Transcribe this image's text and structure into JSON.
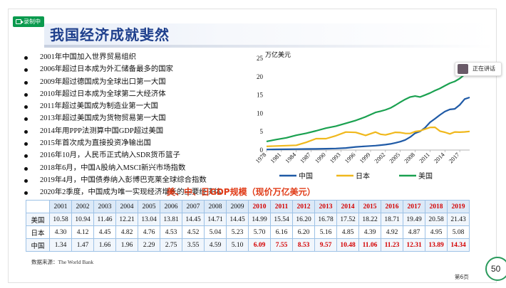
{
  "recording_badge": {
    "label": "录制中",
    "color": "#0a9a4e"
  },
  "slide": {
    "title": "我国经济成就斐然",
    "events": [
      "2001年中国加入世界贸易组织",
      "2006年超过日本成为外汇储备最多的国家",
      "2009年超过德国成为全球出口第一大国",
      "2010年超过日本成为全球第二大经济体",
      "2011年超过美国成为制造业第一大国",
      "2013年超过美国成为货物贸易第一大国",
      "2014年用PPP法测算中国GDP超过美国",
      "2015年首次成为直接投资净输出国",
      "2016年10月，人民币正式纳入SDR货币篮子",
      "2018年6月，中国A股纳入MSCI新兴市场指数",
      "2019年4月，中国债券纳入彭博巴克莱全球综合指数",
      "2020年2季度，中国成为唯一实现经济增长的主要经济体"
    ],
    "table_caption": "美、中、日GDP规模（现价万亿美元）",
    "table": {
      "years": [
        "2001",
        "2002",
        "2003",
        "2004",
        "2005",
        "2006",
        "2007",
        "2008",
        "2009",
        "2010",
        "2011",
        "2012",
        "2013",
        "2014",
        "2015",
        "2016",
        "2017",
        "2018",
        "2019"
      ],
      "highlight_from_year": "2010",
      "rows": [
        {
          "label": "美国",
          "values": [
            "10.58",
            "10.94",
            "11.46",
            "12.21",
            "13.04",
            "13.81",
            "14.45",
            "14.71",
            "14.45",
            "14.99",
            "15.54",
            "16.20",
            "16.78",
            "17.52",
            "18.22",
            "18.71",
            "19.49",
            "20.58",
            "21.43"
          ],
          "highlight": false
        },
        {
          "label": "日本",
          "values": [
            "4.30",
            "4.12",
            "4.45",
            "4.82",
            "4.76",
            "4.53",
            "4.52",
            "5.04",
            "5.23",
            "5.70",
            "6.16",
            "6.20",
            "5.16",
            "4.85",
            "4.39",
            "4.92",
            "4.87",
            "4.95",
            "5.08"
          ],
          "highlight": false
        },
        {
          "label": "中国",
          "values": [
            "1.34",
            "1.47",
            "1.66",
            "1.96",
            "2.29",
            "2.75",
            "3.55",
            "4.59",
            "5.10",
            "6.09",
            "7.55",
            "8.53",
            "9.57",
            "10.48",
            "11.06",
            "11.23",
            "12.31",
            "13.89",
            "14.34"
          ],
          "highlight": true
        }
      ]
    },
    "source": "数据来源：The World Bank",
    "page_number": "第6页"
  },
  "speaking_indicator": {
    "label": "正在讲话"
  },
  "timer": {
    "value": "50"
  },
  "colors": {
    "china": "#1f5aa6",
    "japan": "#f0b81c",
    "usa": "#1aa150",
    "highlight_red": "#d40000",
    "title_blue": "#1e3f8c"
  },
  "chart_data": {
    "type": "line",
    "ylabel": "万亿美元",
    "ylim": [
      0,
      25
    ],
    "yticks": [
      0,
      5,
      10,
      15,
      20,
      25
    ],
    "xlim": [
      1978,
      2019
    ],
    "xtick_labels": [
      "1978",
      "1981",
      "1984",
      "1987",
      "1990",
      "1993",
      "1996",
      "1999",
      "2002",
      "2005",
      "2008",
      "2011",
      "2014",
      "2017"
    ],
    "legend_position": "bottom",
    "series": [
      {
        "name": "中国",
        "color": "#1f5aa6",
        "x": [
          1978,
          1980,
          1982,
          1984,
          1986,
          1988,
          1990,
          1992,
          1994,
          1996,
          1998,
          2000,
          2001,
          2002,
          2003,
          2004,
          2005,
          2006,
          2007,
          2008,
          2009,
          2010,
          2011,
          2012,
          2013,
          2014,
          2015,
          2016,
          2017,
          2018,
          2019
        ],
        "y": [
          0.15,
          0.19,
          0.21,
          0.26,
          0.3,
          0.31,
          0.36,
          0.43,
          0.56,
          0.86,
          1.03,
          1.21,
          1.34,
          1.47,
          1.66,
          1.96,
          2.29,
          2.75,
          3.55,
          4.59,
          5.1,
          6.09,
          7.55,
          8.53,
          9.57,
          10.48,
          11.06,
          11.23,
          12.31,
          13.89,
          14.34
        ]
      },
      {
        "name": "日本",
        "color": "#f0b81c",
        "x": [
          1978,
          1980,
          1982,
          1984,
          1986,
          1988,
          1990,
          1992,
          1994,
          1996,
          1998,
          2000,
          2001,
          2002,
          2003,
          2004,
          2005,
          2006,
          2007,
          2008,
          2009,
          2010,
          2011,
          2012,
          2013,
          2014,
          2015,
          2016,
          2017,
          2018,
          2019
        ],
        "y": [
          1.0,
          1.1,
          1.2,
          1.3,
          2.1,
          3.1,
          3.1,
          3.9,
          4.9,
          4.8,
          4.0,
          4.9,
          4.3,
          4.12,
          4.45,
          4.82,
          4.76,
          4.53,
          4.52,
          5.04,
          5.23,
          5.7,
          6.16,
          6.2,
          5.16,
          4.85,
          4.39,
          4.92,
          4.87,
          4.95,
          5.08
        ]
      },
      {
        "name": "美国",
        "color": "#1aa150",
        "x": [
          1978,
          1980,
          1982,
          1984,
          1986,
          1988,
          1990,
          1992,
          1994,
          1996,
          1998,
          2000,
          2001,
          2002,
          2003,
          2004,
          2005,
          2006,
          2007,
          2008,
          2009,
          2010,
          2011,
          2012,
          2013,
          2014,
          2015,
          2016,
          2017,
          2018,
          2019
        ],
        "y": [
          2.35,
          2.86,
          3.34,
          4.04,
          4.58,
          5.24,
          5.96,
          6.52,
          7.29,
          8.07,
          9.06,
          10.25,
          10.58,
          10.94,
          11.46,
          12.21,
          13.04,
          13.81,
          14.45,
          14.71,
          14.45,
          14.99,
          15.54,
          16.2,
          16.78,
          17.52,
          18.22,
          18.71,
          19.49,
          20.58,
          21.43
        ]
      }
    ]
  }
}
